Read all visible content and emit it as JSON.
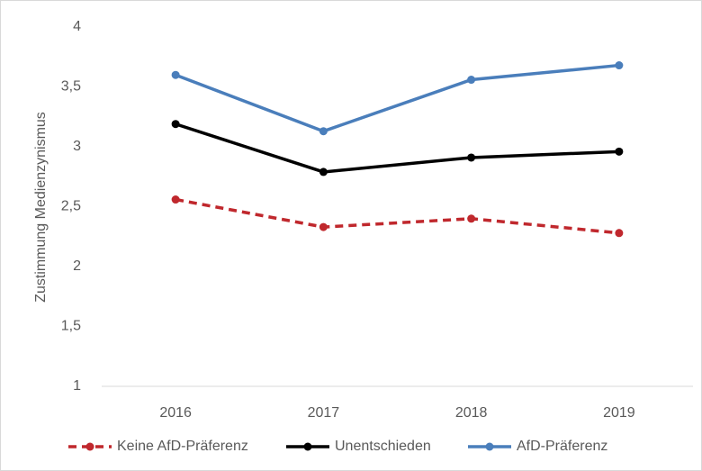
{
  "chart_data": {
    "type": "line",
    "y_label": "Zustimmung Medienzynismus",
    "categories": [
      "2016",
      "2017",
      "2018",
      "2019"
    ],
    "series": [
      {
        "name": "Keine AfD-Präferenz",
        "color": "#c0282d",
        "dashed": true,
        "values": [
          2.56,
          2.33,
          2.4,
          2.28
        ]
      },
      {
        "name": "Unentschieden",
        "color": "#000000",
        "dashed": false,
        "values": [
          3.19,
          2.79,
          2.91,
          2.96
        ]
      },
      {
        "name": "AfD-Präferenz",
        "color": "#4a7ebb",
        "dashed": false,
        "values": [
          3.6,
          3.13,
          3.56,
          3.68
        ]
      }
    ],
    "ylim": [
      1,
      4
    ],
    "yticks": [
      1,
      {
        "value": 1.5,
        "label": "1,5"
      },
      2,
      {
        "value": 2.5,
        "label": "2,5"
      },
      3,
      {
        "value": 3.5,
        "label": "3,5"
      },
      4
    ],
    "grid": false,
    "legend": "bottom"
  }
}
